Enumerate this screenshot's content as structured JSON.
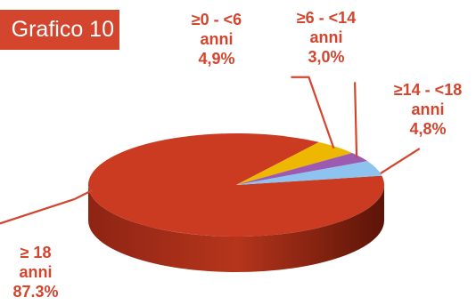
{
  "badge": {
    "text": "Grafico 10"
  },
  "colors": {
    "accent": "#d4452e",
    "side": "#b5351b"
  },
  "chart_data": {
    "type": "pie",
    "title": "",
    "slices": [
      {
        "label_lines": [
          "≥ 18",
          "anni",
          "87.3%"
        ],
        "value": 87.3,
        "color": "#cb3b22"
      },
      {
        "label_lines": [
          "≥0 - <6",
          "anni",
          "4,9%"
        ],
        "value": 4.9,
        "color": "#efb800"
      },
      {
        "label_lines": [
          "≥6 - <14",
          "anni",
          "3,0%"
        ],
        "value": 3.0,
        "color": "#9c5ab0"
      },
      {
        "label_lines": [
          "≥14 - <18",
          "anni",
          "4,8%"
        ],
        "value": 4.8,
        "color": "#8ec3f0"
      }
    ]
  }
}
